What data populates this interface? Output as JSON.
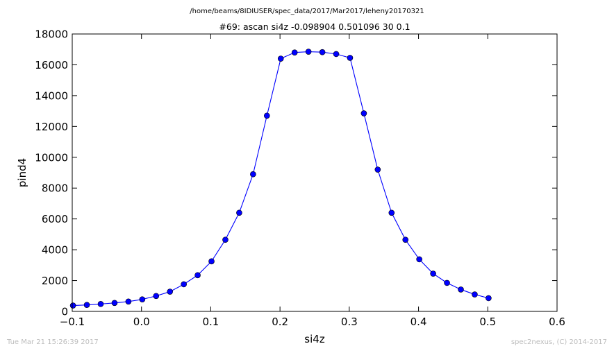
{
  "figure": {
    "suptitle": "/home/beams/8IDIUSER/spec_data/2017/Mar2017/leheny20170321",
    "footer_left": "Tue Mar 21 15:26:39 2017",
    "footer_right": "spec2nexus, (C) 2014-2017"
  },
  "colors": {
    "series": "#0000ff",
    "axes": "#000000",
    "background": "#ffffff",
    "footer": "#bdbdbd"
  },
  "chart_data": {
    "type": "line",
    "title": "#69: ascan  si4z -0.098904 0.501096  30 0.1",
    "xlabel": "si4z",
    "ylabel": "pind4",
    "xlim": [
      -0.1,
      0.6
    ],
    "ylim": [
      0,
      18000
    ],
    "xticks": [
      -0.1,
      0.0,
      0.1,
      0.2,
      0.3,
      0.4,
      0.5,
      0.6
    ],
    "xtick_labels": [
      "−0.1",
      "0.0",
      "0.1",
      "0.2",
      "0.3",
      "0.4",
      "0.5",
      "0.6"
    ],
    "yticks": [
      0,
      2000,
      4000,
      6000,
      8000,
      10000,
      12000,
      14000,
      16000,
      18000
    ],
    "ytick_labels": [
      "0",
      "2000",
      "4000",
      "6000",
      "8000",
      "10000",
      "12000",
      "14000",
      "16000",
      "18000"
    ],
    "grid": false,
    "marker": "circle",
    "series": [
      {
        "x": [
          -0.0989,
          -0.0789,
          -0.0589,
          -0.0389,
          -0.0189,
          0.0011,
          0.0211,
          0.0411,
          0.0611,
          0.0811,
          0.1011,
          0.1211,
          0.1411,
          0.1611,
          0.1811,
          0.2011,
          0.2211,
          0.2411,
          0.2611,
          0.2811,
          0.3011,
          0.3211,
          0.3411,
          0.3611,
          0.3811,
          0.4011,
          0.4211,
          0.4411,
          0.4611,
          0.4811,
          0.5011
        ],
        "y": [
          380,
          420,
          480,
          550,
          640,
          780,
          1000,
          1280,
          1760,
          2350,
          3250,
          4650,
          6400,
          8900,
          12700,
          16400,
          16800,
          16850,
          16820,
          16700,
          16450,
          12850,
          9200,
          6400,
          4650,
          3380,
          2450,
          1850,
          1420,
          1100,
          860
        ]
      }
    ]
  }
}
